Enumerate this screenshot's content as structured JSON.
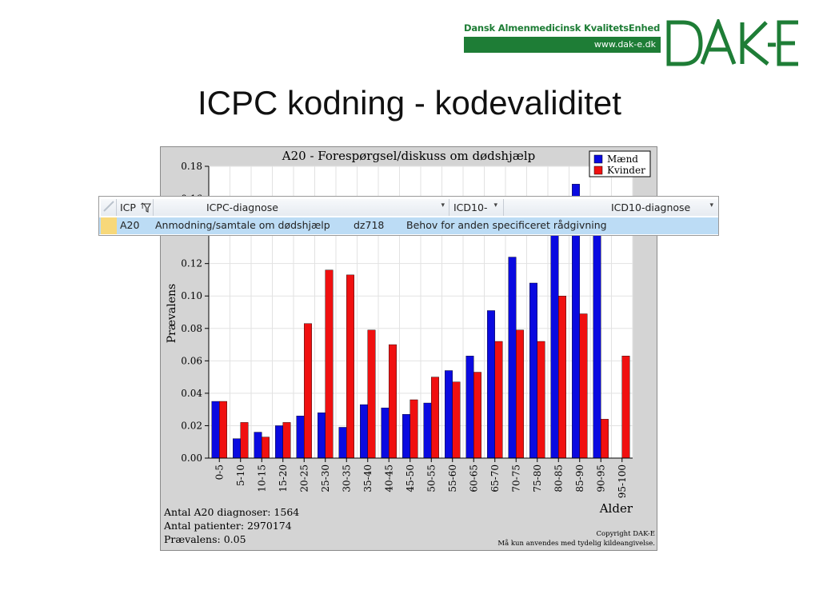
{
  "logo": {
    "org_name": "Dansk Almenmedicinsk KvalitetsEnhed",
    "url": "www.dak-e.dk",
    "wordmark": "DAK-E",
    "color": "#1e7d36"
  },
  "slide": {
    "title": "ICPC kodning - kodevaliditet"
  },
  "chart_data": {
    "type": "bar",
    "title": "A20 - Forespørgsel/diskuss om dødshjælp",
    "xlabel": "Alder",
    "ylabel": "Prævalens",
    "ylim": [
      0,
      0.18
    ],
    "yticks": [
      "0.00",
      "0.02",
      "0.04",
      "0.06",
      "0.08",
      "0.10",
      "0.12",
      "0.14",
      "0.16",
      "0.18"
    ],
    "grid": true,
    "legend_position": "top-right",
    "categories": [
      "0-5",
      "5-10",
      "10-15",
      "15-20",
      "20-25",
      "25-30",
      "30-35",
      "35-40",
      "40-45",
      "45-50",
      "50-55",
      "55-60",
      "60-65",
      "65-70",
      "70-75",
      "75-80",
      "80-85",
      "85-90",
      "90-95",
      "95-100"
    ],
    "series": [
      {
        "name": "Mænd",
        "color": "#0a0ae0",
        "values": [
          0.035,
          0.012,
          0.016,
          0.02,
          0.026,
          0.028,
          0.019,
          0.033,
          0.031,
          0.027,
          0.034,
          0.054,
          0.063,
          0.091,
          0.124,
          0.108,
          0.139,
          0.169,
          0.139,
          0.0
        ]
      },
      {
        "name": "Kvinder",
        "color": "#f01010",
        "values": [
          0.035,
          0.022,
          0.013,
          0.022,
          0.083,
          0.116,
          0.113,
          0.079,
          0.07,
          0.036,
          0.05,
          0.047,
          0.053,
          0.072,
          0.079,
          0.072,
          0.1,
          0.089,
          0.024,
          0.063
        ]
      }
    ],
    "notes": [
      "Antal A20 diagnoser: 1564",
      "Antal patienter: 2970174",
      "Prævalens: 0.05"
    ],
    "copyright": [
      "Copyright DAK-E",
      "Må kun anvendes med tydelig kildeangivelse."
    ]
  },
  "grid": {
    "columns": [
      {
        "label": "ICP",
        "sort_icon": "↑",
        "filter_icon": "funnel-icon"
      },
      {
        "label": "ICPC-diagnose",
        "dropdown": "▾"
      },
      {
        "label": "ICD10-",
        "dropdown": "▾"
      },
      {
        "label": "ICD10-diagnose",
        "dropdown": "▾"
      }
    ],
    "rows": [
      {
        "icp": "A20",
        "icpc_diagnose": "Anmodning/samtale om dødshjælp",
        "icd10": "dz718",
        "icd10_diagnose": "Behov for anden specificeret rådgivning"
      }
    ],
    "selected_color": "#bcdcf5"
  }
}
